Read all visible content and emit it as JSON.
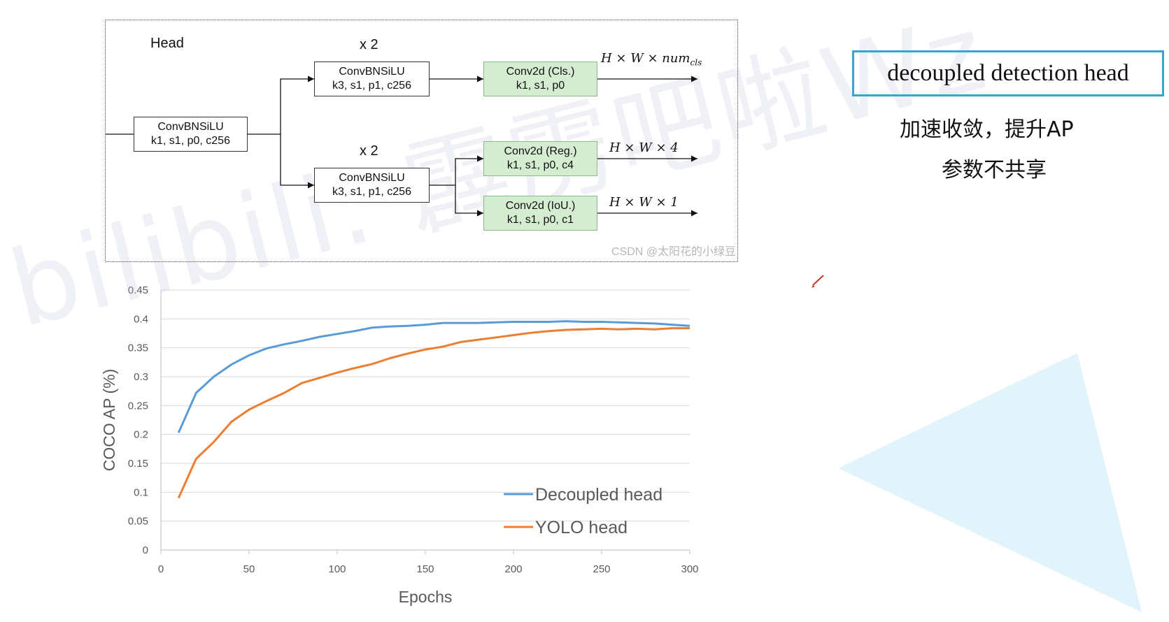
{
  "diagram": {
    "title": "Head",
    "stem": {
      "line1": "ConvBNSiLU",
      "line2": "k1, s1, p0, c256"
    },
    "branch_top": {
      "repeat": "x 2",
      "line1": "ConvBNSiLU",
      "line2": "k3, s1, p1, c256"
    },
    "branch_bottom": {
      "repeat": "x 2",
      "line1": "ConvBNSiLU",
      "line2": "k3, s1, p1, c256"
    },
    "cls": {
      "line1": "Conv2d (Cls.)",
      "line2": "k1, s1, p0",
      "output": "H × W × num",
      "output_sub": "cls"
    },
    "reg": {
      "line1": "Conv2d (Reg.)",
      "line2": "k1, s1, p0, c4",
      "output": "H × W × 4"
    },
    "iou": {
      "line1": "Conv2d (IoU.)",
      "line2": "k1, s1, p0, c1",
      "output": "H × W × 1"
    },
    "watermark": "CSDN @太阳花的小绿豆"
  },
  "side_panel": {
    "title": "decoupled detection head",
    "note1": "加速收敛，提升AP",
    "note2": "参数不共享"
  },
  "overlay_watermark": "bilibili: 霹雳吧啦Wz",
  "colors": {
    "decoupled": "#5b9bd5",
    "yolo": "#ed7d31",
    "accent": "#34a6cf",
    "green_box": "#d4ecd0"
  },
  "chart_data": {
    "type": "line",
    "xlabel": "Epochs",
    "ylabel": "COCO AP (%)",
    "xlim": [
      0,
      300
    ],
    "ylim": [
      0,
      0.45
    ],
    "xticks": [
      0,
      50,
      100,
      150,
      200,
      250,
      300
    ],
    "yticks": [
      0,
      0.05,
      0.1,
      0.15,
      0.2,
      0.25,
      0.3,
      0.35,
      0.4,
      0.45
    ],
    "ytick_labels": [
      "0",
      "0.05",
      "0.1",
      "0.15",
      "0.2",
      "0.25",
      "0.3",
      "0.35",
      "0.4",
      "0.45"
    ],
    "grid": "horizontal",
    "legend_position": "bottom-right",
    "series": [
      {
        "name": "Decoupled head",
        "color": "#5b9bd5",
        "x": [
          10,
          20,
          30,
          40,
          50,
          60,
          70,
          80,
          90,
          100,
          110,
          120,
          130,
          140,
          150,
          160,
          170,
          180,
          190,
          200,
          210,
          220,
          230,
          240,
          250,
          260,
          270,
          280,
          290,
          300
        ],
        "values": [
          0.203,
          0.272,
          0.3,
          0.321,
          0.337,
          0.349,
          0.356,
          0.362,
          0.369,
          0.374,
          0.379,
          0.385,
          0.387,
          0.388,
          0.39,
          0.393,
          0.393,
          0.393,
          0.394,
          0.395,
          0.395,
          0.395,
          0.396,
          0.395,
          0.395,
          0.394,
          0.393,
          0.392,
          0.39,
          0.388
        ]
      },
      {
        "name": "YOLO head",
        "color": "#ed7d31",
        "x": [
          10,
          20,
          30,
          40,
          50,
          60,
          70,
          80,
          90,
          100,
          110,
          120,
          130,
          140,
          150,
          160,
          170,
          180,
          190,
          200,
          210,
          220,
          230,
          240,
          250,
          260,
          270,
          280,
          290,
          300
        ],
        "values": [
          0.09,
          0.158,
          0.187,
          0.222,
          0.243,
          0.258,
          0.272,
          0.289,
          0.298,
          0.307,
          0.315,
          0.322,
          0.332,
          0.34,
          0.347,
          0.352,
          0.36,
          0.364,
          0.368,
          0.372,
          0.376,
          0.379,
          0.381,
          0.382,
          0.383,
          0.382,
          0.383,
          0.382,
          0.384,
          0.384
        ]
      }
    ]
  }
}
